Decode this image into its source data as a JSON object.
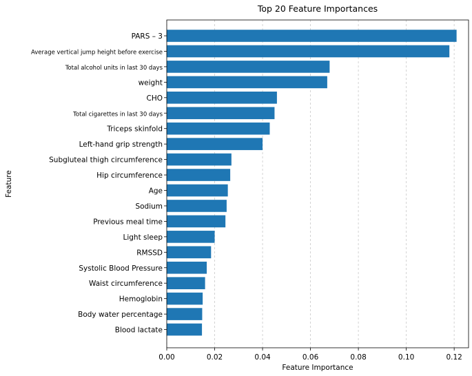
{
  "chart_data": {
    "type": "bar",
    "orientation": "horizontal",
    "title": "Top 20 Feature Importances",
    "xlabel": "Feature Importance",
    "ylabel": "Feature",
    "xlim": [
      0,
      0.126
    ],
    "xticks": [
      0.0,
      0.02,
      0.04,
      0.06,
      0.08,
      0.1,
      0.12
    ],
    "xtick_labels": [
      "0.00",
      "0.02",
      "0.04",
      "0.06",
      "0.08",
      "0.10",
      "0.12"
    ],
    "grid": "x-dashed",
    "bar_color": "#1f77b4",
    "categories": [
      "PARS – 3",
      "Average vertical jump height before exercise",
      "Total alcohol units in last 30 days",
      "weight",
      "CHO",
      "Total cigarettes in last 30 days",
      "Triceps skinfold",
      "Left-hand grip strength",
      "Subgluteal thigh circumference",
      "Hip circumference",
      "Age",
      "Sodium",
      "Previous meal time",
      "Light sleep",
      "RMSSD",
      "Systolic Blood Pressure",
      "Waist circumference",
      "Hemoglobin",
      "Body water percentage",
      "Blood lactate"
    ],
    "small_label_indices": [
      1,
      2,
      5
    ],
    "values": [
      0.121,
      0.118,
      0.068,
      0.067,
      0.046,
      0.045,
      0.043,
      0.04,
      0.027,
      0.0265,
      0.0255,
      0.025,
      0.0245,
      0.02,
      0.0185,
      0.0167,
      0.016,
      0.015,
      0.0148,
      0.0147
    ]
  }
}
